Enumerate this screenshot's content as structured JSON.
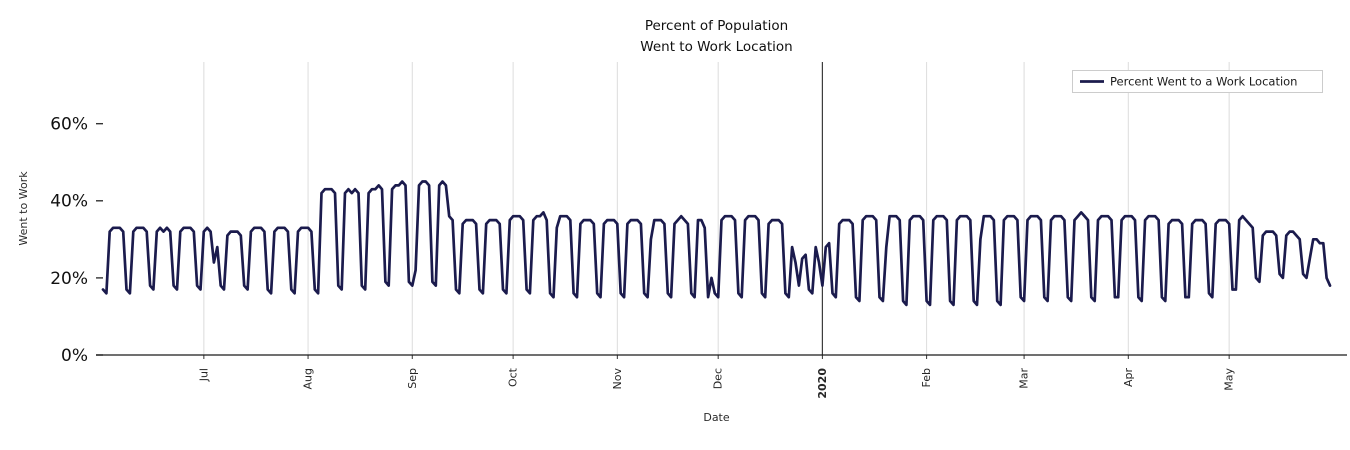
{
  "chart_data": {
    "type": "line",
    "title": "Percent of Population\nWent to Work Location",
    "title_line1": "Percent of Population",
    "title_line2": "Went to Work Location",
    "xlabel": "Date",
    "ylabel": "Went to Work",
    "unit": "percent",
    "grid": "vertical-only",
    "ylim": [
      0,
      76
    ],
    "start_date": "2019-06-01",
    "frequency": "daily",
    "legend": {
      "position": "upper right",
      "entries": [
        "Percent Went to a Work Location"
      ]
    },
    "y_ticks": [
      {
        "label": "0%",
        "value": 0
      },
      {
        "label": "20%",
        "value": 20
      },
      {
        "label": "40%",
        "value": 40
      },
      {
        "label": "60%",
        "value": 60
      }
    ],
    "x_ticks": [
      {
        "label": "Jul",
        "day": 30
      },
      {
        "label": "Aug",
        "day": 61
      },
      {
        "label": "Sep",
        "day": 92
      },
      {
        "label": "Oct",
        "day": 122
      },
      {
        "label": "Nov",
        "day": 153
      },
      {
        "label": "Dec",
        "day": 183
      },
      {
        "label": "2020",
        "day": 214,
        "bold": true,
        "emphasized": true
      },
      {
        "label": "Feb",
        "day": 245
      },
      {
        "label": "Mar",
        "day": 274
      },
      {
        "label": "Apr",
        "day": 305
      },
      {
        "label": "May",
        "day": 335
      }
    ],
    "series": [
      {
        "name": "Percent Went to a Work Location",
        "color": "#1b1b4d",
        "values": [
          17,
          16,
          32,
          33,
          33,
          33,
          32,
          17,
          16,
          32,
          33,
          33,
          33,
          32,
          18,
          17,
          32,
          33,
          32,
          33,
          32,
          18,
          17,
          32,
          33,
          33,
          33,
          32,
          18,
          17,
          32,
          33,
          32,
          24,
          28,
          18,
          17,
          31,
          32,
          32,
          32,
          31,
          18,
          17,
          32,
          33,
          33,
          33,
          32,
          17,
          16,
          32,
          33,
          33,
          33,
          32,
          17,
          16,
          32,
          33,
          33,
          33,
          32,
          17,
          16,
          42,
          43,
          43,
          43,
          42,
          18,
          17,
          42,
          43,
          42,
          43,
          42,
          18,
          17,
          42,
          43,
          43,
          44,
          43,
          19,
          18,
          43,
          44,
          44,
          45,
          44,
          19,
          18,
          22,
          44,
          45,
          45,
          44,
          19,
          18,
          44,
          45,
          44,
          36,
          35,
          17,
          16,
          34,
          35,
          35,
          35,
          34,
          17,
          16,
          34,
          35,
          35,
          35,
          34,
          17,
          16,
          35,
          36,
          36,
          36,
          35,
          17,
          16,
          35,
          36,
          36,
          37,
          35,
          16,
          15,
          33,
          36,
          36,
          36,
          35,
          16,
          15,
          34,
          35,
          35,
          35,
          34,
          16,
          15,
          34,
          35,
          35,
          35,
          34,
          16,
          15,
          34,
          35,
          35,
          35,
          34,
          16,
          15,
          30,
          35,
          35,
          35,
          34,
          16,
          15,
          34,
          35,
          36,
          35,
          34,
          16,
          15,
          35,
          35,
          33,
          15,
          20,
          16,
          15,
          35,
          36,
          36,
          36,
          35,
          16,
          15,
          35,
          36,
          36,
          36,
          35,
          16,
          15,
          34,
          35,
          35,
          35,
          34,
          16,
          15,
          28,
          24,
          18,
          25,
          26,
          17,
          16,
          28,
          24,
          18,
          28,
          29,
          16,
          15,
          34,
          35,
          35,
          35,
          34,
          15,
          14,
          35,
          36,
          36,
          36,
          35,
          15,
          14,
          28,
          36,
          36,
          36,
          35,
          14,
          13,
          35,
          36,
          36,
          36,
          35,
          14,
          13,
          35,
          36,
          36,
          36,
          35,
          14,
          13,
          35,
          36,
          36,
          36,
          35,
          14,
          13,
          30,
          36,
          36,
          36,
          35,
          14,
          13,
          35,
          36,
          36,
          36,
          35,
          15,
          14,
          35,
          36,
          36,
          36,
          35,
          15,
          14,
          35,
          36,
          36,
          36,
          35,
          15,
          14,
          35,
          36,
          37,
          36,
          35,
          15,
          14,
          35,
          36,
          36,
          36,
          35,
          15,
          15,
          35,
          36,
          36,
          36,
          35,
          15,
          14,
          35,
          36,
          36,
          36,
          35,
          15,
          14,
          34,
          35,
          35,
          35,
          34,
          15,
          15,
          34,
          35,
          35,
          35,
          34,
          16,
          15,
          34,
          35,
          35,
          35,
          34,
          17,
          17,
          35,
          36,
          35,
          34,
          33,
          20,
          19,
          31,
          32,
          32,
          32,
          31,
          21,
          20,
          31,
          32,
          32,
          31,
          30,
          21,
          20,
          25,
          30,
          30,
          29,
          29,
          20,
          18
        ]
      }
    ]
  }
}
